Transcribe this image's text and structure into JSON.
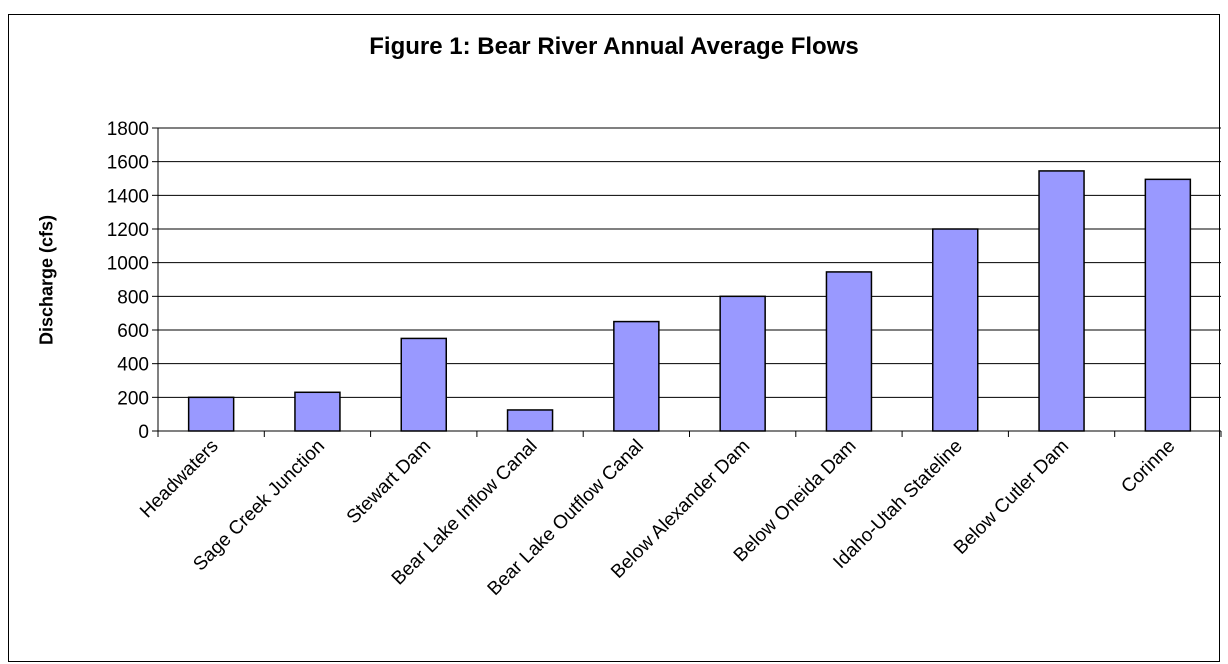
{
  "chart_data": {
    "type": "bar",
    "title": "Figure 1: Bear River Annual Average Flows",
    "xlabel": "",
    "ylabel": "Discharge (cfs)",
    "ylim": [
      0,
      1800
    ],
    "yticks": [
      0,
      200,
      400,
      600,
      800,
      1000,
      1200,
      1400,
      1600,
      1800
    ],
    "grid": true,
    "legend": "none",
    "categories": [
      "Headwaters",
      "Sage Creek Junction",
      "Stewart Dam",
      "Bear Lake Inflow Canal",
      "Bear Lake Outflow Canal",
      "Below Alexander Dam",
      "Below Oneida Dam",
      "Idaho-Utah Stateline",
      "Below Cutler Dam",
      "Corinne"
    ],
    "values": [
      200,
      230,
      550,
      125,
      650,
      800,
      945,
      1200,
      1545,
      1495
    ],
    "colors": {
      "bar_fill": "#9999ff",
      "bar_stroke": "#000000",
      "grid": "#000000"
    }
  }
}
